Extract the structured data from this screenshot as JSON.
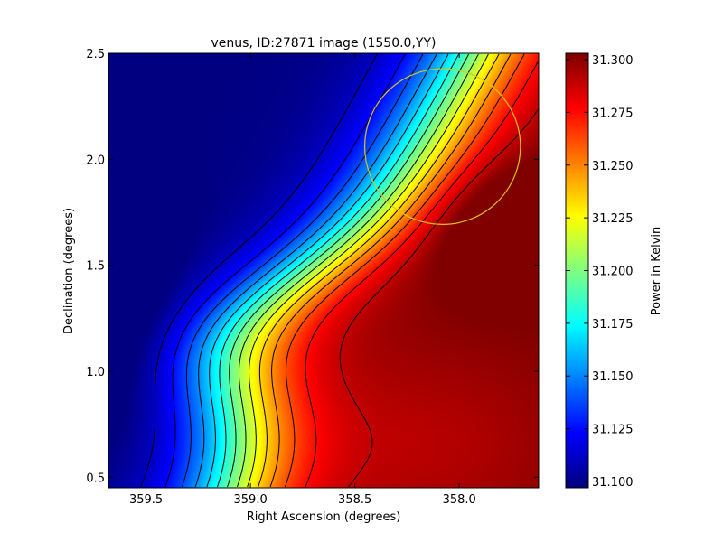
{
  "chart_data": {
    "type": "heatmap",
    "title": "venus, ID:27871 image (1550.0,YY)",
    "xlabel": "Right Ascension (degrees)",
    "ylabel": "Declination (degrees)",
    "xlim": [
      359.68,
      357.62
    ],
    "ylim": [
      0.45,
      2.5
    ],
    "x_inverted": true,
    "x_ticks": [
      359.5,
      359.0,
      358.5,
      358.0
    ],
    "x_tick_labels": [
      "359.5",
      "359.0",
      "358.5",
      "358.0"
    ],
    "y_ticks": [
      0.5,
      1.0,
      1.5,
      2.0,
      2.5
    ],
    "y_tick_labels": [
      "0.5",
      "1.0",
      "1.5",
      "2.0",
      "2.5"
    ],
    "colormap": "jet",
    "colorbar": {
      "label": "Power in Kelvin",
      "range": [
        31.097,
        31.303
      ],
      "ticks": [
        31.1,
        31.125,
        31.15,
        31.175,
        31.2,
        31.225,
        31.25,
        31.275,
        31.3
      ],
      "tick_labels": [
        "31.100",
        "31.125",
        "31.150",
        "31.175",
        "31.200",
        "31.225",
        "31.250",
        "31.275",
        "31.300"
      ]
    },
    "field": {
      "min": 31.097,
      "max": 31.303,
      "minimum_location": {
        "ra": 359.62,
        "dec": 1.3
      },
      "maximum_location": {
        "ra": 357.7,
        "dec": 1.65
      }
    },
    "contours": {
      "color": "#000000",
      "count": 14
    },
    "beam_circle": {
      "color": "#d9c41e",
      "center": {
        "ra": 358.08,
        "dec": 2.06
      },
      "radius_deg": 0.37
    },
    "grid": false
  }
}
